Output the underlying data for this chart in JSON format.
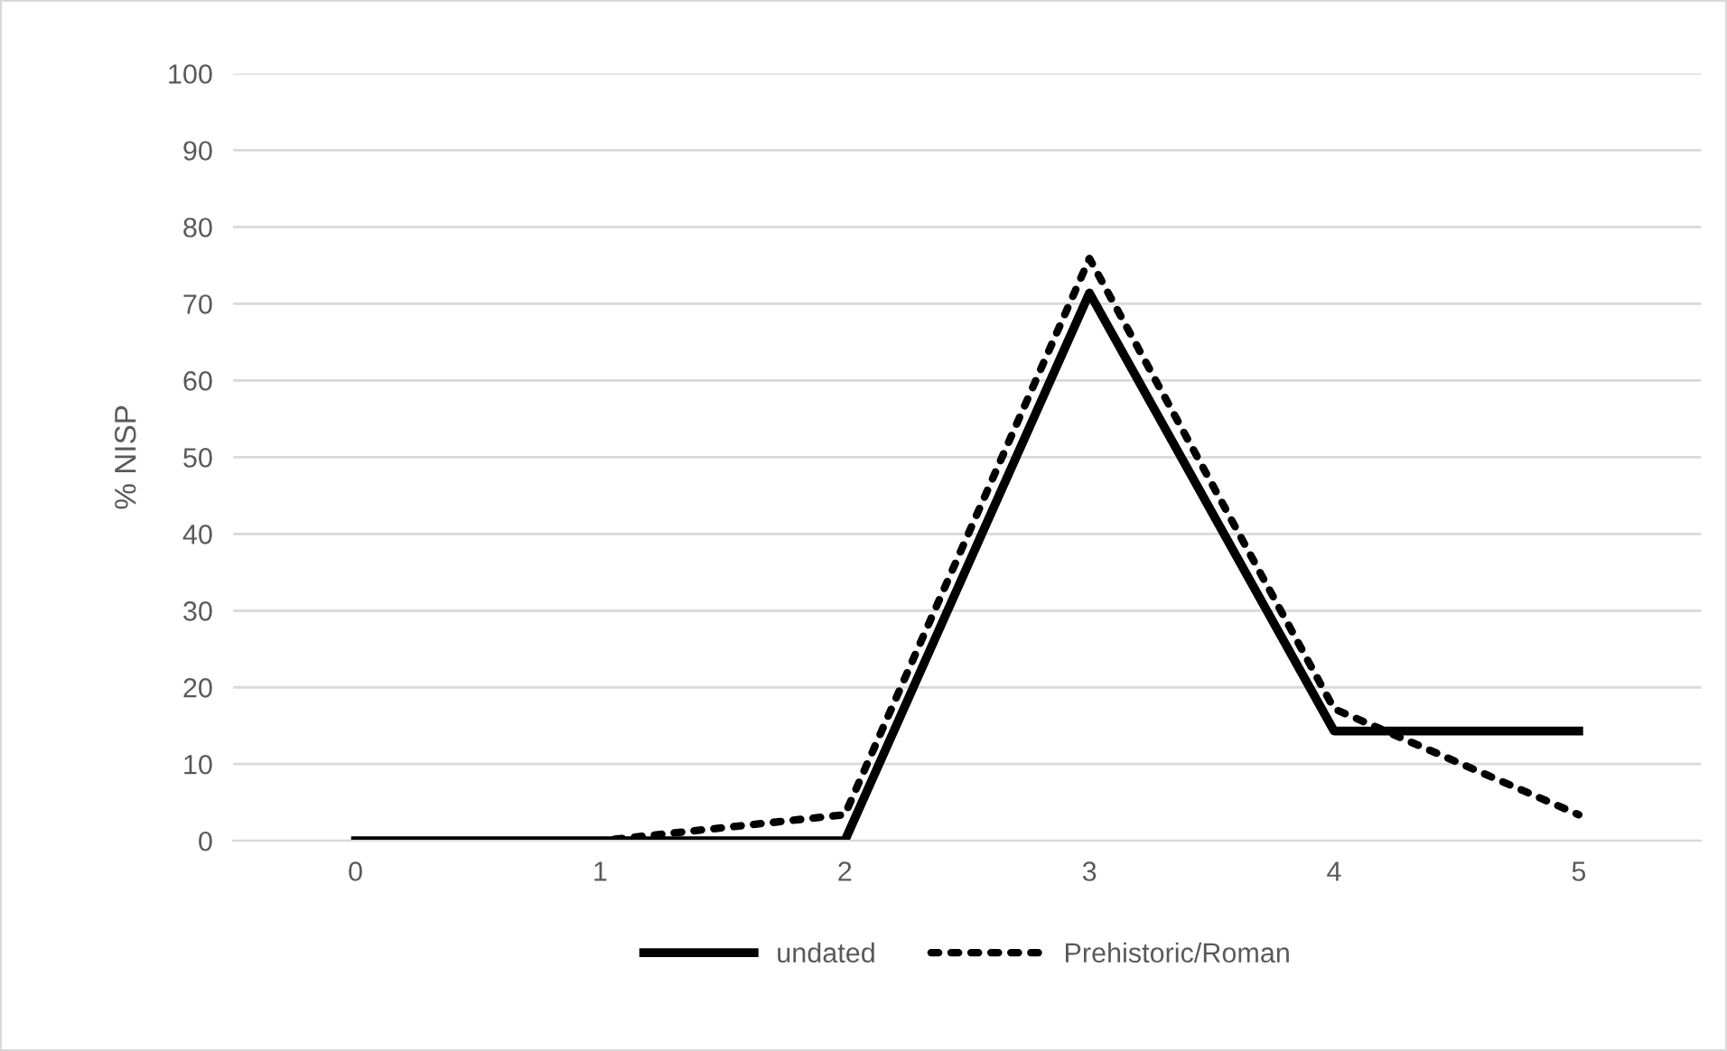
{
  "chart_data": {
    "type": "line",
    "ylabel": "% NISP",
    "categories": [
      "0",
      "1",
      "2",
      "3",
      "4",
      "5"
    ],
    "series": [
      {
        "name": "undated",
        "color": "#000000",
        "values": [
          0,
          0,
          0,
          71.4,
          14.3,
          14.3
        ],
        "line_style": "solid"
      },
      {
        "name": "Prehistoric/Roman",
        "color": "#000000",
        "values": [
          0,
          0,
          3.4,
          75.9,
          17.2,
          3.4
        ],
        "line_style": "dotted"
      }
    ],
    "ylim": [
      0,
      100
    ],
    "yticks": [
      0,
      10,
      20,
      30,
      40,
      50,
      60,
      70,
      80,
      90,
      100
    ],
    "grid": "y",
    "legend": "bottom",
    "marker": "none"
  }
}
